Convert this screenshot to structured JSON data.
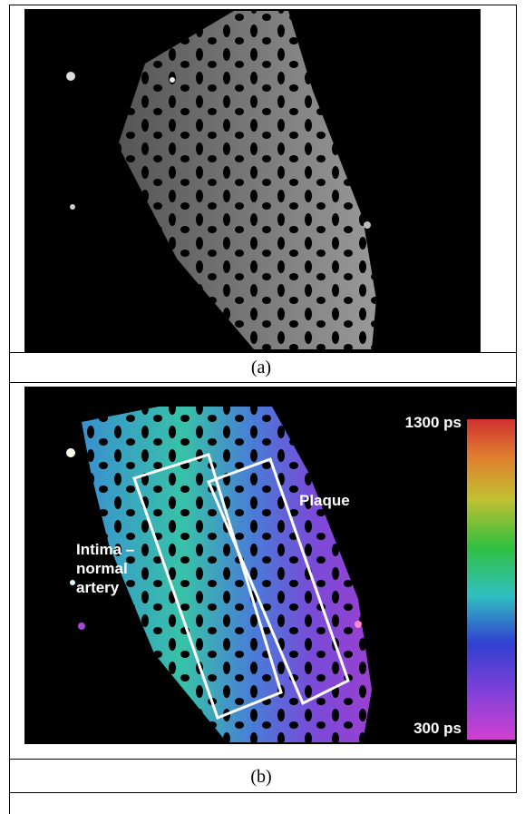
{
  "panel_a": {
    "caption": "(a)"
  },
  "panel_b": {
    "caption": "(b)",
    "scale_max": "1300 ps",
    "scale_min": "300 ps",
    "label_plaque": "Plaque",
    "label_intima": [
      "Intima –",
      "normal",
      "artery"
    ]
  }
}
